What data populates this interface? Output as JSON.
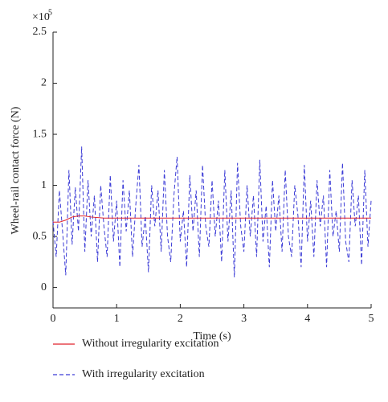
{
  "chart_data": {
    "type": "line",
    "xlabel": "Time (s)",
    "ylabel": "Wheel-rail contact force (N)",
    "y_offset_text": "×10",
    "y_offset_exponent": "5",
    "xlim": [
      0,
      5
    ],
    "xticks": [
      0,
      1,
      2,
      3,
      4,
      5
    ],
    "ylim": [
      -0.2,
      2.5
    ],
    "yticks": [
      0,
      0.5,
      1,
      1.5,
      2,
      2.5
    ],
    "grid": false,
    "legend": "bottom",
    "series": [
      {
        "name": "With irregularity excitation",
        "color": "#3b3bd6",
        "dash": "dashed",
        "x": [
          0,
          0.05,
          0.1,
          0.15,
          0.2,
          0.25,
          0.3,
          0.35,
          0.4,
          0.45,
          0.5,
          0.55,
          0.6,
          0.65,
          0.7,
          0.75,
          0.8,
          0.85,
          0.9,
          0.95,
          1,
          1.05,
          1.1,
          1.15,
          1.2,
          1.25,
          1.3,
          1.35,
          1.4,
          1.45,
          1.5,
          1.55,
          1.6,
          1.65,
          1.7,
          1.75,
          1.8,
          1.85,
          1.9,
          1.95,
          2,
          2.05,
          2.1,
          2.15,
          2.2,
          2.25,
          2.3,
          2.35,
          2.4,
          2.45,
          2.5,
          2.55,
          2.6,
          2.65,
          2.7,
          2.75,
          2.8,
          2.85,
          2.9,
          2.95,
          3,
          3.05,
          3.1,
          3.15,
          3.2,
          3.25,
          3.3,
          3.35,
          3.4,
          3.45,
          3.5,
          3.55,
          3.6,
          3.65,
          3.7,
          3.75,
          3.8,
          3.85,
          3.9,
          3.95,
          4,
          4.05,
          4.1,
          4.15,
          4.2,
          4.25,
          4.3,
          4.35,
          4.4,
          4.45,
          4.5,
          4.55,
          4.6,
          4.65,
          4.7,
          4.75,
          4.8,
          4.85,
          4.9,
          4.95,
          5
        ],
        "values": [
          0.65,
          0.3,
          0.95,
          0.55,
          0.12,
          1.15,
          0.42,
          0.98,
          0.55,
          1.38,
          0.35,
          1.05,
          0.5,
          0.9,
          0.25,
          1.0,
          0.6,
          0.3,
          1.1,
          0.45,
          0.85,
          0.2,
          1.05,
          0.55,
          0.95,
          0.3,
          0.8,
          1.2,
          0.4,
          0.7,
          0.15,
          1.0,
          0.6,
          0.95,
          0.35,
          1.15,
          0.5,
          0.25,
          0.9,
          1.28,
          0.45,
          0.75,
          0.2,
          1.1,
          0.55,
          0.95,
          0.3,
          1.2,
          0.6,
          0.4,
          1.05,
          0.5,
          0.85,
          0.25,
          1.15,
          0.45,
          0.95,
          0.1,
          1.22,
          0.6,
          0.35,
          1.0,
          0.5,
          0.9,
          0.3,
          1.25,
          0.45,
          0.8,
          0.2,
          1.05,
          0.55,
          0.9,
          0.35,
          1.15,
          0.5,
          0.3,
          1.0,
          0.7,
          0.2,
          1.2,
          0.45,
          0.85,
          0.3,
          1.05,
          0.6,
          0.9,
          0.2,
          1.15,
          0.5,
          0.75,
          0.35,
          1.22,
          0.45,
          0.25,
          1.05,
          0.6,
          0.9,
          0.22,
          1.15,
          0.4,
          0.85
        ]
      },
      {
        "name": "Without irregularity excitation",
        "color": "#e0202a",
        "dash": "solid",
        "x": [
          0,
          0.1,
          0.2,
          0.3,
          0.4,
          0.5,
          0.6,
          0.8,
          1,
          1.5,
          2,
          2.5,
          3,
          3.5,
          4,
          4.5,
          5
        ],
        "values": [
          0.64,
          0.64,
          0.66,
          0.69,
          0.7,
          0.7,
          0.69,
          0.68,
          0.68,
          0.68,
          0.68,
          0.68,
          0.68,
          0.68,
          0.68,
          0.68,
          0.68
        ]
      }
    ]
  }
}
